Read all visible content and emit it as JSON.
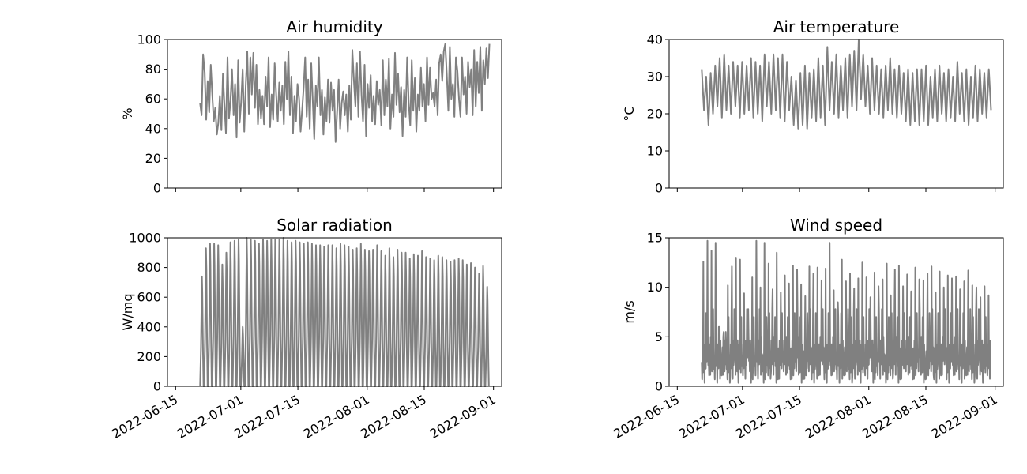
{
  "colors": {
    "series": "#808080",
    "axis": "#000000"
  },
  "chart_data": [
    {
      "type": "line",
      "title": "Air humidity",
      "ylabel": "%",
      "ylim": [
        0,
        100
      ],
      "yticks": [
        0,
        20,
        40,
        60,
        80,
        100
      ],
      "xlim": [
        "2022-06-13",
        "2022-09-03"
      ],
      "xticks": [
        "2022-06-15",
        "2022-07-01",
        "2022-07-15",
        "2022-08-01",
        "2022-08-15",
        "2022-09-01"
      ],
      "show_xtick_labels": false,
      "series": [
        {
          "x_start": "2022-06-21",
          "x_end": "2022-08-31",
          "values": [
            57,
            49,
            90,
            78,
            46,
            72,
            51,
            83,
            63,
            45,
            54,
            36,
            44,
            62,
            39,
            77,
            56,
            37,
            88,
            47,
            59,
            80,
            49,
            70,
            34,
            86,
            44,
            58,
            80,
            38,
            69,
            92,
            50,
            88,
            63,
            91,
            54,
            83,
            43,
            66,
            47,
            62,
            43,
            75,
            55,
            88,
            41,
            63,
            46,
            84,
            62,
            45,
            71,
            52,
            69,
            43,
            85,
            60,
            92,
            49,
            75,
            37,
            62,
            45,
            70,
            60,
            38,
            52,
            67,
            88,
            48,
            73,
            40,
            84,
            59,
            33,
            69,
            55,
            88,
            49,
            66,
            36,
            61,
            45,
            73,
            44,
            71,
            52,
            66,
            31,
            52,
            73,
            40,
            57,
            65,
            49,
            63,
            38,
            69,
            46,
            93,
            72,
            55,
            84,
            48,
            92,
            63,
            45,
            83,
            35,
            70,
            54,
            76,
            45,
            62,
            43,
            72,
            56,
            66,
            42,
            86,
            49,
            73,
            55,
            87,
            40,
            63,
            48,
            91,
            56,
            77,
            51,
            68,
            35,
            66,
            48,
            88,
            57,
            42,
            86,
            52,
            74,
            38,
            63,
            52,
            81,
            55,
            70,
            45,
            88,
            56,
            81,
            60,
            64,
            55,
            73,
            49,
            84,
            90,
            72,
            92,
            97,
            77,
            52,
            95,
            60,
            70,
            48,
            88,
            79,
            60,
            48,
            88,
            63,
            75,
            50,
            85,
            68,
            80,
            49,
            93,
            55,
            85,
            64,
            95,
            52,
            86,
            70,
            94,
            74,
            97
          ]
        }
      ]
    },
    {
      "type": "line",
      "title": "Air temperature",
      "ylabel": "°C",
      "ylim": [
        0,
        40
      ],
      "yticks": [
        0,
        10,
        20,
        30,
        40
      ],
      "xlim": [
        "2022-06-13",
        "2022-09-03"
      ],
      "xticks": [
        "2022-06-15",
        "2022-07-01",
        "2022-07-15",
        "2022-08-01",
        "2022-08-15",
        "2022-09-01"
      ],
      "show_xtick_labels": false,
      "series": [
        {
          "x_start": "2022-06-21",
          "x_end": "2022-08-31",
          "values": [
            32,
            21,
            30,
            17,
            31,
            20,
            33,
            22,
            35,
            19,
            36,
            21,
            33,
            20,
            34,
            22,
            33,
            19,
            34,
            20,
            33,
            21,
            35,
            19,
            34,
            20,
            33,
            18,
            36,
            22,
            34,
            20,
            36,
            21,
            35,
            19,
            36,
            18,
            34,
            21,
            30,
            17,
            29,
            16,
            31,
            17,
            33,
            16,
            31,
            19,
            32,
            18,
            35,
            19,
            33,
            17,
            38,
            21,
            34,
            20,
            36,
            19,
            33,
            21,
            35,
            19,
            36,
            22,
            37,
            21,
            40,
            24,
            36,
            22,
            33,
            20,
            35,
            21,
            33,
            20,
            32,
            19,
            33,
            21,
            35,
            20,
            32,
            19,
            33,
            20,
            31,
            18,
            32,
            17,
            31,
            18,
            32,
            17,
            32,
            18,
            33,
            17,
            30,
            19,
            32,
            18,
            33,
            20,
            31,
            18,
            32,
            19,
            30,
            18,
            34,
            20,
            31,
            18,
            32,
            17,
            30,
            19,
            33,
            18,
            32,
            20,
            31,
            19,
            32,
            21
          ]
        }
      ]
    },
    {
      "type": "line",
      "title": "Solar radiation",
      "ylabel": "W/mq",
      "ylim": [
        0,
        1000
      ],
      "yticks": [
        0,
        200,
        400,
        600,
        800,
        1000
      ],
      "xlim": [
        "2022-06-13",
        "2022-09-03"
      ],
      "xticks": [
        "2022-06-15",
        "2022-07-01",
        "2022-07-15",
        "2022-08-01",
        "2022-08-15",
        "2022-09-01"
      ],
      "show_xtick_labels": true,
      "series": [
        {
          "x_start": "2022-06-21",
          "x_end": "2022-08-31",
          "daily_peaks": [
            740,
            930,
            960,
            960,
            950,
            820,
            900,
            970,
            980,
            990,
            400,
            1000,
            990,
            980,
            960,
            990,
            980,
            990,
            990,
            990,
            1000,
            980,
            970,
            980,
            970,
            960,
            970,
            960,
            950,
            950,
            940,
            950,
            950,
            930,
            960,
            950,
            940,
            920,
            930,
            960,
            920,
            910,
            920,
            950,
            910,
            880,
            930,
            870,
            920,
            900,
            900,
            860,
            890,
            880,
            910,
            870,
            860,
            850,
            880,
            870,
            850,
            840,
            850,
            860,
            850,
            820,
            830,
            800,
            760,
            810,
            670
          ]
        }
      ]
    },
    {
      "type": "line",
      "title": "Wind speed",
      "ylabel": "m/s",
      "ylim": [
        0,
        15
      ],
      "yticks": [
        0,
        5,
        10,
        15
      ],
      "xlim": [
        "2022-06-13",
        "2022-09-03"
      ],
      "xticks": [
        "2022-06-15",
        "2022-07-01",
        "2022-07-15",
        "2022-08-01",
        "2022-08-15",
        "2022-09-01"
      ],
      "show_xtick_labels": true,
      "series": [
        {
          "x_start": "2022-06-21",
          "x_end": "2022-08-31",
          "daily_peaks": [
            12.6,
            14.7,
            13.7,
            14.5,
            6.0,
            5.5,
            10.2,
            12.1,
            13.0,
            12.8,
            9.4,
            7.8,
            11.0,
            14.7,
            10.0,
            14.5,
            12.4,
            9.8,
            13.5,
            9.5,
            11.2,
            10.4,
            12.2,
            11.8,
            10.3,
            9.1,
            12.1,
            11.4,
            12.0,
            10.7,
            11.9,
            14.5,
            9.7,
            8.5,
            12.8,
            10.6,
            11.4,
            9.9,
            10.9,
            12.5,
            11.0,
            9.0,
            11.5,
            10.1,
            10.8,
            12.4,
            9.2,
            11.8,
            12.2,
            10.1,
            11.3,
            9.6,
            12.0,
            10.8,
            10.7,
            11.4,
            12.1,
            9.5,
            11.6,
            10.0,
            11.2,
            10.9,
            11.1,
            9.8,
            10.6,
            11.7,
            10.2,
            10.0,
            9.0,
            10.1,
            9.2
          ]
        }
      ]
    }
  ]
}
